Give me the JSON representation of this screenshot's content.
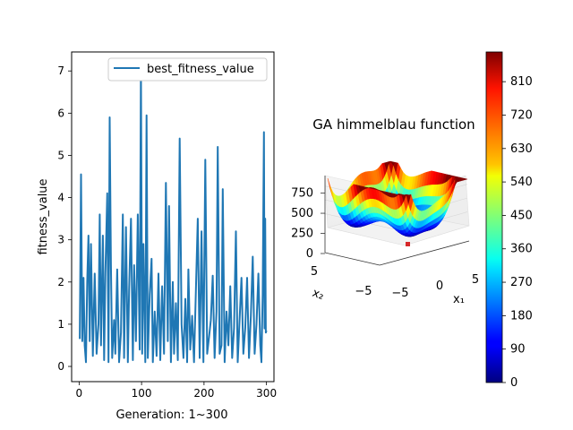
{
  "chart_data": [
    {
      "type": "line",
      "xlabel": "Generation: 1~300",
      "ylabel": "fitness_value",
      "xlim": [
        -12,
        312
      ],
      "ylim": [
        -0.36,
        7.45
      ],
      "x_ticks": [
        0,
        100,
        200,
        300
      ],
      "y_ticks": [
        0,
        1,
        2,
        3,
        4,
        5,
        6,
        7
      ],
      "legend_position": "top-right",
      "grid": false,
      "series": [
        {
          "name": "best_fitness_value",
          "color": "#1f77b4",
          "x": [
            1,
            3,
            5,
            7,
            9,
            11,
            13,
            15,
            17,
            19,
            22,
            25,
            28,
            31,
            33,
            35,
            38,
            40,
            42,
            45,
            47,
            49,
            51,
            53,
            56,
            58,
            61,
            64,
            67,
            70,
            72,
            75,
            78,
            80,
            83,
            86,
            88,
            91,
            94,
            97,
            99,
            101,
            103,
            106,
            108,
            110,
            113,
            116,
            118,
            121,
            124,
            127,
            130,
            133,
            136,
            139,
            142,
            144,
            147,
            150,
            152,
            155,
            158,
            161,
            164,
            167,
            170,
            173,
            175,
            178,
            181,
            184,
            187,
            190,
            193,
            196,
            199,
            202,
            205,
            208,
            211,
            214,
            217,
            220,
            222,
            225,
            228,
            230,
            233,
            236,
            239,
            242,
            245,
            248,
            251,
            254,
            257,
            260,
            263,
            266,
            269,
            272,
            275,
            278,
            281,
            284,
            287,
            290,
            292,
            294,
            296,
            297,
            298,
            299,
            300
          ],
          "y": [
            0.65,
            4.55,
            0.6,
            2.1,
            0.5,
            0.1,
            2.0,
            3.1,
            0.6,
            2.9,
            0.25,
            2.2,
            0.3,
            1.0,
            3.6,
            0.5,
            3.1,
            0.15,
            2.2,
            4.1,
            0.1,
            5.9,
            2.4,
            0.2,
            1.1,
            0.3,
            2.3,
            0.1,
            0.8,
            3.6,
            0.2,
            3.3,
            0.1,
            1.8,
            3.5,
            0.15,
            2.4,
            0.6,
            3.6,
            0.4,
            7.1,
            0.3,
            2.9,
            0.1,
            5.95,
            0.2,
            1.7,
            2.55,
            0.1,
            1.3,
            0.25,
            2.2,
            0.15,
            1.9,
            0.3,
            4.35,
            0.6,
            3.8,
            0.1,
            2.0,
            0.3,
            1.5,
            0.15,
            5.4,
            1.0,
            0.2,
            1.6,
            0.1,
            2.3,
            0.4,
            1.2,
            0.1,
            1.8,
            3.5,
            0.2,
            3.2,
            0.1,
            4.9,
            0.3,
            0.7,
            1.1,
            2.15,
            0.2,
            1.3,
            5.2,
            0.3,
            0.5,
            4.2,
            0.1,
            1.3,
            0.5,
            1.9,
            0.2,
            0.9,
            3.2,
            0.1,
            1.1,
            2.1,
            0.3,
            0.9,
            2.1,
            0.2,
            1.2,
            2.6,
            0.3,
            1.0,
            2.2,
            0.5,
            0.1,
            1.7,
            5.55,
            0.9,
            3.5,
            0.8,
            0.85
          ]
        }
      ]
    },
    {
      "type": "surface3d",
      "title": "GA himmelblau function",
      "xlabel": "x₁",
      "ylabel": "x₂",
      "x_ticks": [
        -5,
        0,
        5
      ],
      "y_ticks": [
        -5,
        5
      ],
      "z_ticks": [
        0,
        250,
        500,
        750
      ],
      "xlim": [
        -6,
        6
      ],
      "ylim": [
        -6,
        6
      ],
      "zlim": [
        0,
        890
      ],
      "colormap": "jet",
      "best_point_color": "#d62728",
      "colorbar": {
        "ticks": [
          0,
          90,
          180,
          270,
          360,
          450,
          540,
          630,
          720,
          810
        ],
        "range": [
          0,
          890
        ]
      }
    }
  ]
}
